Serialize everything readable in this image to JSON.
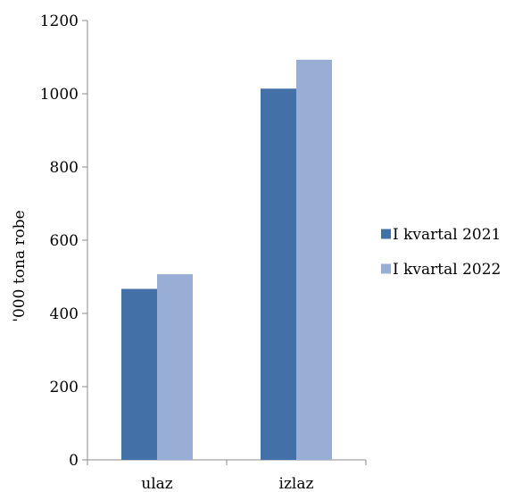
{
  "chart_data": {
    "type": "bar",
    "title": "",
    "xlabel": "",
    "ylabel": "'000 tona robe",
    "ylim": [
      0,
      1200
    ],
    "yticks": [
      0,
      200,
      400,
      600,
      800,
      1000,
      1200
    ],
    "categories": [
      "ulaz",
      "izlaz"
    ],
    "series": [
      {
        "name": "I kvartal 2021",
        "values": [
          467,
          1014
        ],
        "color": "#4470A8"
      },
      {
        "name": "I kvartal 2022",
        "values": [
          507,
          1093
        ],
        "color": "#98AED5"
      }
    ],
    "grid": false,
    "legend_position": "right"
  }
}
